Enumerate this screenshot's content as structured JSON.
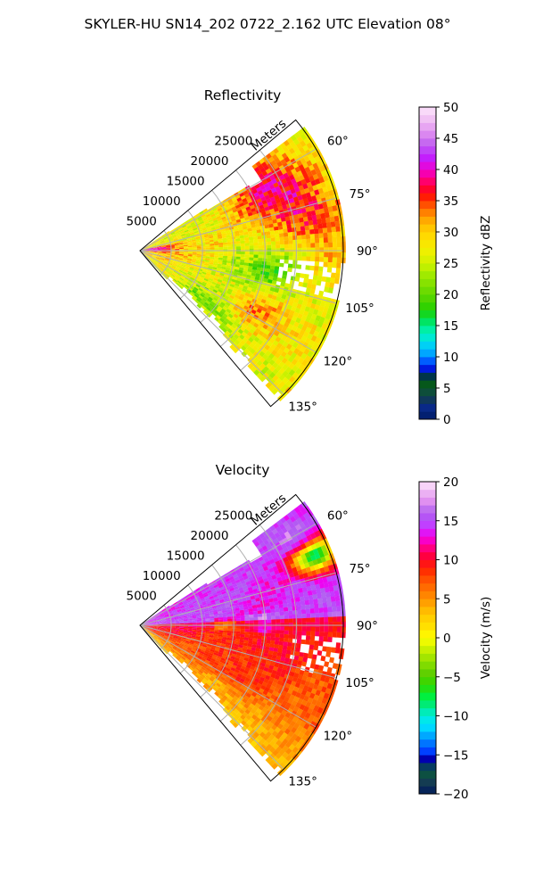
{
  "figure": {
    "suptitle": "SKYLER-HU  SN14_202  0722_2.162 UTC Elevation 08°"
  },
  "chart_data": [
    {
      "type": "heatmap",
      "projection": "polar-sector",
      "title": "Reflectivity",
      "range_axis_label": "Meters",
      "range_ticks": [
        "5000",
        "10000",
        "15000",
        "20000",
        "25000"
      ],
      "range_tick_values": [
        5000,
        10000,
        15000,
        20000,
        25000
      ],
      "range_max": 32500,
      "azimuth_range_deg": [
        50,
        140
      ],
      "azimuth_ticks": [
        "60°",
        "75°",
        "90°",
        "105°",
        "120°",
        "135°"
      ],
      "azimuth_tick_values": [
        60,
        75,
        90,
        105,
        120,
        135
      ],
      "grid": true,
      "field": {
        "description": "mostly 25–32 dBZ; 35–40 dBZ streaks near 60–80° far range and near radar along 80–95°; 18–24 dBZ patch near 95–110° mid/far range and along left edge 120–135°",
        "hotspots": [
          {
            "az": 65,
            "range": 24000,
            "dbz": 37
          },
          {
            "az": 78,
            "range": 26000,
            "dbz": 35
          },
          {
            "az": 85,
            "range": 2500,
            "dbz": 37
          },
          {
            "az": 118,
            "range": 22000,
            "dbz": 33
          },
          {
            "az": 100,
            "range": 22000,
            "dbz": 20
          },
          {
            "az": 128,
            "range": 14000,
            "dbz": 20
          }
        ]
      },
      "colorbar": {
        "label": "Reflectivity dBZ",
        "min": 0,
        "max": 50,
        "ticks": [
          "0",
          "5",
          "10",
          "15",
          "20",
          "25",
          "30",
          "35",
          "40",
          "45",
          "50"
        ],
        "tick_values": [
          0,
          5,
          10,
          15,
          20,
          25,
          30,
          35,
          40,
          45,
          50
        ],
        "levels": 40
      }
    },
    {
      "type": "heatmap",
      "projection": "polar-sector",
      "title": "Velocity",
      "range_axis_label": "Meters",
      "range_ticks": [
        "5000",
        "10000",
        "15000",
        "20000",
        "25000"
      ],
      "range_tick_values": [
        5000,
        10000,
        15000,
        20000,
        25000
      ],
      "range_max": 32500,
      "azimuth_range_deg": [
        50,
        140
      ],
      "azimuth_ticks": [
        "60°",
        "75°",
        "90°",
        "105°",
        "120°",
        "135°"
      ],
      "azimuth_tick_values": [
        60,
        75,
        90,
        105,
        120,
        135
      ],
      "grid": true,
      "field": {
        "description": "positive 13–17 m/s for azimuth < ~88°, 8–11 m/s for 90–120°, 2–6 m/s toward 125–140°; folded -10 to -13 m/s patch near 65–72° at far range",
        "hotspots": [
          {
            "az": 68,
            "range": 30000,
            "ms": -12
          },
          {
            "az": 60,
            "range": 28000,
            "ms": 17
          },
          {
            "az": 100,
            "range": 22000,
            "ms": 10
          },
          {
            "az": 128,
            "range": 16000,
            "ms": 3
          }
        ]
      },
      "colorbar": {
        "label": "Velocity (m/s)",
        "min": -20,
        "max": 20,
        "ticks": [
          "−20",
          "−15",
          "−10",
          "−5",
          "0",
          "5",
          "10",
          "15",
          "20"
        ],
        "tick_values": [
          -20,
          -15,
          -10,
          -5,
          0,
          5,
          10,
          15,
          20
        ],
        "levels": 40
      }
    }
  ]
}
